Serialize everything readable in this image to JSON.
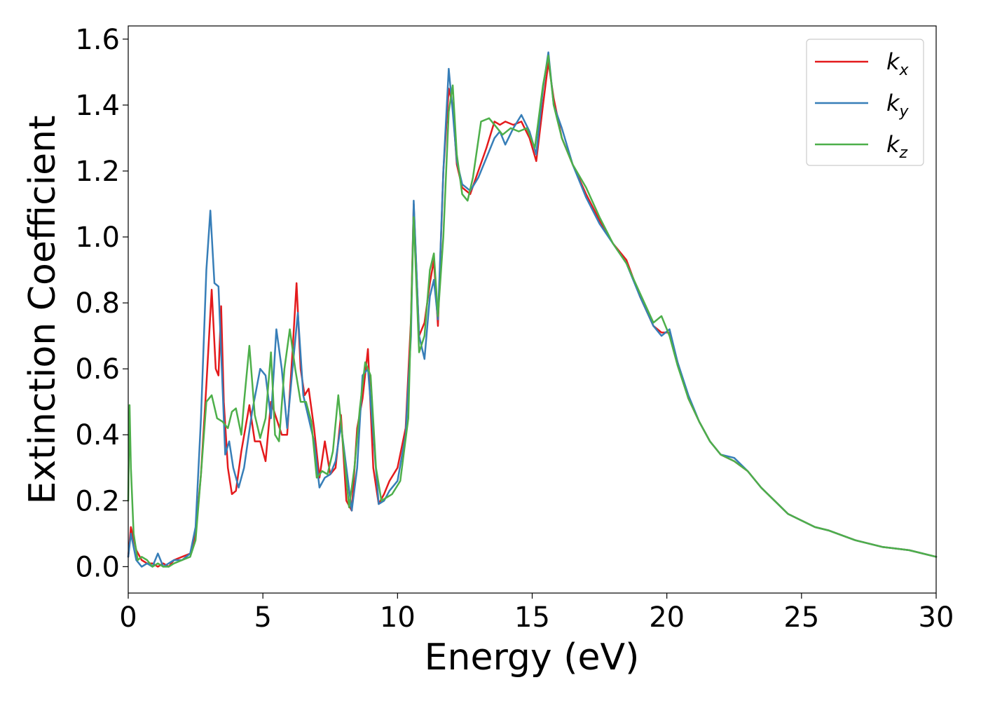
{
  "chart_data": {
    "type": "line",
    "title": "",
    "xlabel": "Energy (eV)",
    "ylabel": "Extinction Coefficient",
    "xlim": [
      0,
      30
    ],
    "ylim": [
      -0.08,
      1.64
    ],
    "xticks": [
      0,
      5,
      10,
      15,
      20,
      25,
      30
    ],
    "xtick_labels": [
      "0",
      "5",
      "10",
      "15",
      "20",
      "25",
      "30"
    ],
    "yticks": [
      0.0,
      0.2,
      0.4,
      0.6,
      0.8,
      1.0,
      1.2,
      1.4,
      1.6
    ],
    "ytick_labels": [
      "0.0",
      "0.2",
      "0.4",
      "0.6",
      "0.8",
      "1.0",
      "1.2",
      "1.4",
      "1.6"
    ],
    "grid": false,
    "legend_position": "top-right",
    "series": [
      {
        "name": "kx",
        "legend_main": "k",
        "legend_sub": "x",
        "color": "#e41a1c",
        "x": [
          0,
          0.1,
          0.3,
          0.5,
          0.7,
          0.9,
          1.1,
          1.3,
          1.5,
          1.7,
          2.0,
          2.3,
          2.5,
          2.7,
          2.9,
          3.1,
          3.25,
          3.35,
          3.45,
          3.55,
          3.7,
          3.85,
          4.0,
          4.2,
          4.5,
          4.7,
          4.9,
          5.1,
          5.3,
          5.5,
          5.7,
          5.9,
          6.1,
          6.25,
          6.4,
          6.55,
          6.7,
          6.9,
          7.1,
          7.3,
          7.5,
          7.7,
          7.9,
          8.1,
          8.3,
          8.5,
          8.7,
          8.9,
          9.1,
          9.3,
          9.5,
          9.7,
          10.0,
          10.3,
          10.5,
          10.6,
          10.8,
          11.0,
          11.2,
          11.35,
          11.5,
          11.7,
          11.9,
          12.05,
          12.2,
          12.4,
          12.7,
          13.0,
          13.3,
          13.6,
          13.8,
          14.0,
          14.3,
          14.6,
          14.9,
          15.15,
          15.4,
          15.6,
          15.8,
          16.1,
          16.5,
          17.0,
          17.5,
          18.0,
          18.5,
          19.0,
          19.5,
          19.8,
          20.1,
          20.4,
          20.8,
          21.2,
          21.6,
          22.0,
          22.5,
          23.0,
          23.5,
          24.0,
          24.5,
          25.0,
          25.5,
          26.0,
          27.0,
          28.0,
          29.0,
          30.0
        ],
        "y": [
          0.03,
          0.12,
          0.05,
          0.02,
          0.01,
          0.01,
          0.0,
          0.01,
          0.0,
          0.02,
          0.03,
          0.04,
          0.1,
          0.28,
          0.55,
          0.84,
          0.6,
          0.58,
          0.79,
          0.5,
          0.3,
          0.22,
          0.23,
          0.35,
          0.49,
          0.38,
          0.38,
          0.32,
          0.5,
          0.45,
          0.4,
          0.4,
          0.65,
          0.86,
          0.6,
          0.52,
          0.54,
          0.42,
          0.27,
          0.38,
          0.28,
          0.3,
          0.46,
          0.2,
          0.17,
          0.42,
          0.51,
          0.66,
          0.3,
          0.19,
          0.22,
          0.26,
          0.3,
          0.42,
          0.75,
          1.1,
          0.7,
          0.74,
          0.86,
          0.93,
          0.73,
          1.2,
          1.45,
          1.4,
          1.22,
          1.15,
          1.13,
          1.2,
          1.27,
          1.35,
          1.34,
          1.35,
          1.34,
          1.35,
          1.3,
          1.23,
          1.4,
          1.53,
          1.42,
          1.3,
          1.22,
          1.13,
          1.05,
          0.98,
          0.93,
          0.82,
          0.73,
          0.71,
          0.71,
          0.62,
          0.51,
          0.44,
          0.38,
          0.34,
          0.32,
          0.29,
          0.24,
          0.2,
          0.16,
          0.14,
          0.12,
          0.11,
          0.08,
          0.06,
          0.05,
          0.03
        ]
      },
      {
        "name": "ky",
        "legend_main": "k",
        "legend_sub": "y",
        "color": "#377eb8",
        "x": [
          0,
          0.1,
          0.3,
          0.5,
          0.7,
          0.9,
          1.1,
          1.3,
          1.5,
          1.7,
          2.0,
          2.3,
          2.5,
          2.7,
          2.9,
          3.05,
          3.2,
          3.35,
          3.5,
          3.6,
          3.75,
          3.9,
          4.1,
          4.3,
          4.6,
          4.9,
          5.1,
          5.3,
          5.5,
          5.7,
          5.9,
          6.1,
          6.3,
          6.5,
          6.7,
          6.9,
          7.1,
          7.3,
          7.5,
          7.7,
          7.9,
          8.1,
          8.3,
          8.5,
          8.7,
          8.9,
          9.1,
          9.3,
          9.5,
          9.7,
          10.0,
          10.3,
          10.5,
          10.6,
          10.8,
          11.0,
          11.2,
          11.35,
          11.5,
          11.7,
          11.9,
          12.05,
          12.2,
          12.4,
          12.7,
          13.0,
          13.3,
          13.6,
          13.8,
          14.0,
          14.3,
          14.6,
          14.9,
          15.15,
          15.4,
          15.6,
          15.8,
          16.1,
          16.5,
          17.0,
          17.5,
          18.0,
          18.5,
          19.0,
          19.5,
          19.8,
          20.1,
          20.4,
          20.8,
          21.2,
          21.6,
          22.0,
          22.5,
          23.0,
          23.5,
          24.0,
          24.5,
          25.0,
          25.5,
          26.0,
          27.0,
          28.0,
          29.0,
          30.0
        ],
        "y": [
          0.03,
          0.1,
          0.02,
          0.0,
          0.01,
          0.0,
          0.04,
          0.0,
          0.01,
          0.02,
          0.02,
          0.04,
          0.12,
          0.45,
          0.9,
          1.08,
          0.86,
          0.85,
          0.55,
          0.34,
          0.38,
          0.3,
          0.24,
          0.3,
          0.47,
          0.6,
          0.58,
          0.45,
          0.72,
          0.6,
          0.42,
          0.6,
          0.77,
          0.52,
          0.45,
          0.38,
          0.24,
          0.27,
          0.28,
          0.32,
          0.43,
          0.3,
          0.17,
          0.3,
          0.58,
          0.6,
          0.4,
          0.19,
          0.2,
          0.23,
          0.26,
          0.4,
          0.7,
          1.11,
          0.7,
          0.63,
          0.82,
          0.87,
          0.75,
          1.2,
          1.51,
          1.38,
          1.23,
          1.16,
          1.14,
          1.18,
          1.24,
          1.3,
          1.32,
          1.28,
          1.33,
          1.37,
          1.32,
          1.25,
          1.45,
          1.56,
          1.4,
          1.33,
          1.22,
          1.12,
          1.04,
          0.98,
          0.92,
          0.82,
          0.73,
          0.7,
          0.72,
          0.62,
          0.52,
          0.44,
          0.38,
          0.34,
          0.33,
          0.29,
          0.24,
          0.2,
          0.16,
          0.14,
          0.12,
          0.11,
          0.08,
          0.06,
          0.05,
          0.03
        ]
      },
      {
        "name": "kz",
        "legend_main": "k",
        "legend_sub": "z",
        "color": "#4daf4a",
        "x": [
          0,
          0.05,
          0.1,
          0.2,
          0.35,
          0.5,
          0.7,
          0.9,
          1.1,
          1.3,
          1.5,
          1.7,
          2.0,
          2.3,
          2.5,
          2.7,
          2.9,
          3.1,
          3.3,
          3.5,
          3.7,
          3.85,
          4.0,
          4.2,
          4.3,
          4.5,
          4.7,
          4.9,
          5.1,
          5.3,
          5.45,
          5.6,
          5.8,
          6.0,
          6.2,
          6.4,
          6.6,
          6.8,
          7.0,
          7.2,
          7.4,
          7.6,
          7.8,
          8.0,
          8.2,
          8.4,
          8.6,
          8.8,
          9.0,
          9.2,
          9.4,
          9.6,
          9.8,
          10.1,
          10.4,
          10.6,
          10.8,
          11.0,
          11.2,
          11.35,
          11.5,
          11.7,
          11.9,
          12.05,
          12.2,
          12.4,
          12.6,
          12.8,
          13.1,
          13.4,
          13.6,
          13.9,
          14.2,
          14.5,
          14.8,
          15.1,
          15.4,
          15.6,
          15.8,
          16.1,
          16.5,
          17.0,
          17.5,
          18.0,
          18.5,
          19.0,
          19.5,
          19.8,
          20.1,
          20.4,
          20.8,
          21.2,
          21.6,
          22.0,
          22.5,
          23.0,
          23.5,
          24.0,
          24.5,
          25.0,
          25.5,
          26.0,
          27.0,
          28.0,
          29.0,
          30.0
        ],
        "y": [
          0.2,
          0.49,
          0.3,
          0.1,
          0.02,
          0.03,
          0.02,
          0.0,
          0.01,
          0.0,
          0.0,
          0.01,
          0.02,
          0.03,
          0.08,
          0.28,
          0.5,
          0.52,
          0.45,
          0.44,
          0.42,
          0.47,
          0.48,
          0.4,
          0.5,
          0.67,
          0.46,
          0.39,
          0.45,
          0.65,
          0.4,
          0.38,
          0.6,
          0.72,
          0.6,
          0.5,
          0.5,
          0.44,
          0.27,
          0.29,
          0.28,
          0.35,
          0.52,
          0.35,
          0.18,
          0.3,
          0.48,
          0.62,
          0.58,
          0.3,
          0.2,
          0.21,
          0.22,
          0.26,
          0.45,
          1.06,
          0.65,
          0.7,
          0.9,
          0.95,
          0.76,
          1.0,
          1.38,
          1.46,
          1.25,
          1.13,
          1.11,
          1.18,
          1.35,
          1.36,
          1.34,
          1.31,
          1.33,
          1.32,
          1.33,
          1.27,
          1.46,
          1.55,
          1.4,
          1.3,
          1.22,
          1.15,
          1.06,
          0.98,
          0.92,
          0.83,
          0.74,
          0.76,
          0.7,
          0.61,
          0.51,
          0.44,
          0.38,
          0.34,
          0.32,
          0.29,
          0.24,
          0.2,
          0.16,
          0.14,
          0.12,
          0.11,
          0.08,
          0.06,
          0.05,
          0.03
        ]
      }
    ]
  }
}
